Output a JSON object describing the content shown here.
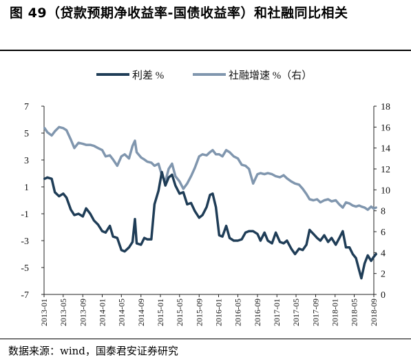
{
  "title": "图 49（贷款预期净收益率-国债收益率）和社融同比相关",
  "source": "数据来源：wind，国泰君安证券研究",
  "chart_data": {
    "type": "line",
    "legend_position": "top",
    "colors": {
      "spread": "#1f3d57",
      "tsf": "#8096ae"
    },
    "x_ticks": [
      "2013-01",
      "2013-05",
      "2013-09",
      "2014-01",
      "2014-05",
      "2014-09",
      "2015-01",
      "2015-05",
      "2015-09",
      "2016-01",
      "2016-05",
      "2016-09",
      "2017-01",
      "2017-05",
      "2017-09",
      "2018-01",
      "2018-05",
      "2018-09"
    ],
    "y_left": {
      "lim": [
        -7,
        7
      ],
      "ticks": [
        "7",
        "5",
        "3",
        "1",
        "-1",
        "-3",
        "-5",
        "-7"
      ]
    },
    "y_right": {
      "lim": [
        0,
        18
      ],
      "ticks": [
        "18",
        "16",
        "14",
        "12",
        "10",
        "8",
        "6",
        "4",
        "2",
        "0"
      ]
    },
    "series": [
      {
        "name": "利差 %",
        "axis": "left",
        "points": [
          [
            "2013-01-04",
            1.6
          ],
          [
            "2013-01-22",
            1.7
          ],
          [
            "2013-02-18",
            1.6
          ],
          [
            "2013-03-10",
            0.6
          ],
          [
            "2013-04-05",
            0.3
          ],
          [
            "2013-05-01",
            0.5
          ],
          [
            "2013-05-22",
            0.2
          ],
          [
            "2013-06-18",
            -0.7
          ],
          [
            "2013-07-10",
            -1.1
          ],
          [
            "2013-08-05",
            -1.0
          ],
          [
            "2013-09-01",
            -1.2
          ],
          [
            "2013-09-22",
            -0.6
          ],
          [
            "2013-10-18",
            -1.0
          ],
          [
            "2013-11-10",
            -1.5
          ],
          [
            "2013-12-05",
            -1.8
          ],
          [
            "2014-01-01",
            -2.3
          ],
          [
            "2014-01-22",
            -2.4
          ],
          [
            "2014-02-18",
            -1.9
          ],
          [
            "2014-03-10",
            -2.7
          ],
          [
            "2014-04-05",
            -2.8
          ],
          [
            "2014-05-01",
            -3.7
          ],
          [
            "2014-05-22",
            -3.8
          ],
          [
            "2014-06-18",
            -3.5
          ],
          [
            "2014-07-10",
            -3.1
          ],
          [
            "2014-07-25",
            -1.4
          ],
          [
            "2014-08-05",
            -3.2
          ],
          [
            "2014-09-01",
            -3.3
          ],
          [
            "2014-09-22",
            -2.8
          ],
          [
            "2014-10-10",
            -2.9
          ],
          [
            "2014-11-05",
            -2.9
          ],
          [
            "2014-11-25",
            -0.3
          ],
          [
            "2014-12-20",
            0.7
          ],
          [
            "2015-01-10",
            2.1
          ],
          [
            "2015-02-01",
            1.1
          ],
          [
            "2015-02-22",
            1.7
          ],
          [
            "2015-03-15",
            1.9
          ],
          [
            "2015-04-05",
            1.1
          ],
          [
            "2015-05-01",
            0.5
          ],
          [
            "2015-05-25",
            0.6
          ],
          [
            "2015-06-18",
            -0.3
          ],
          [
            "2015-07-12",
            -0.2
          ],
          [
            "2015-08-05",
            -0.8
          ],
          [
            "2015-09-01",
            -1.3
          ],
          [
            "2015-09-22",
            -1.1
          ],
          [
            "2015-10-18",
            -0.5
          ],
          [
            "2015-11-08",
            0.4
          ],
          [
            "2015-11-25",
            0.5
          ],
          [
            "2015-12-15",
            -0.5
          ],
          [
            "2016-01-05",
            -2.6
          ],
          [
            "2016-01-25",
            -2.7
          ],
          [
            "2016-02-18",
            -1.9
          ],
          [
            "2016-03-10",
            -2.8
          ],
          [
            "2016-04-05",
            -3.0
          ],
          [
            "2016-05-01",
            -3.0
          ],
          [
            "2016-05-25",
            -2.9
          ],
          [
            "2016-06-18",
            -2.4
          ],
          [
            "2016-07-10",
            -2.3
          ],
          [
            "2016-08-05",
            -2.3
          ],
          [
            "2016-09-01",
            -2.5
          ],
          [
            "2016-09-20",
            -3.0
          ],
          [
            "2016-10-15",
            -2.4
          ],
          [
            "2016-11-05",
            -3.0
          ],
          [
            "2016-12-01",
            -3.2
          ],
          [
            "2016-12-25",
            -2.4
          ],
          [
            "2017-01-20",
            -3.1
          ],
          [
            "2017-02-12",
            -3.2
          ],
          [
            "2017-03-05",
            -3.0
          ],
          [
            "2017-04-01",
            -3.6
          ],
          [
            "2017-04-25",
            -4.0
          ],
          [
            "2017-05-20",
            -3.6
          ],
          [
            "2017-06-12",
            -3.7
          ],
          [
            "2017-07-05",
            -3.3
          ],
          [
            "2017-07-25",
            -2.2
          ],
          [
            "2017-08-18",
            -2.5
          ],
          [
            "2017-09-10",
            -2.8
          ],
          [
            "2017-10-01",
            -3.0
          ],
          [
            "2017-10-25",
            -2.6
          ],
          [
            "2017-11-18",
            -3.1
          ],
          [
            "2017-12-10",
            -2.8
          ],
          [
            "2018-01-05",
            -3.3
          ],
          [
            "2018-01-28",
            -2.8
          ],
          [
            "2018-02-18",
            -2.3
          ],
          [
            "2018-03-10",
            -3.5
          ],
          [
            "2018-04-01",
            -3.5
          ],
          [
            "2018-04-22",
            -4.0
          ],
          [
            "2018-05-12",
            -4.3
          ],
          [
            "2018-06-01",
            -5.2
          ],
          [
            "2018-06-15",
            -5.8
          ],
          [
            "2018-07-05",
            -4.7
          ],
          [
            "2018-07-25",
            -4.1
          ],
          [
            "2018-08-15",
            -4.5
          ],
          [
            "2018-09-01",
            -4.2
          ],
          [
            "2018-09-15",
            -4.0
          ]
        ]
      },
      {
        "name": "社融增速 %（右）",
        "axis": "right",
        "points": [
          [
            "2013-01-04",
            15.9
          ],
          [
            "2013-01-22",
            15.5
          ],
          [
            "2013-02-18",
            15.2
          ],
          [
            "2013-03-10",
            15.6
          ],
          [
            "2013-04-05",
            16.0
          ],
          [
            "2013-05-01",
            15.9
          ],
          [
            "2013-05-22",
            15.7
          ],
          [
            "2013-06-18",
            14.8
          ],
          [
            "2013-07-10",
            14.0
          ],
          [
            "2013-08-05",
            14.5
          ],
          [
            "2013-09-01",
            14.4
          ],
          [
            "2013-09-22",
            14.3
          ],
          [
            "2013-10-18",
            14.3
          ],
          [
            "2013-11-10",
            14.2
          ],
          [
            "2013-12-05",
            14.0
          ],
          [
            "2014-01-01",
            13.8
          ],
          [
            "2014-01-22",
            13.2
          ],
          [
            "2014-02-18",
            13.3
          ],
          [
            "2014-03-10",
            12.9
          ],
          [
            "2014-04-05",
            12.3
          ],
          [
            "2014-05-01",
            13.2
          ],
          [
            "2014-05-22",
            13.4
          ],
          [
            "2014-06-18",
            13.0
          ],
          [
            "2014-07-10",
            14.2
          ],
          [
            "2014-07-25",
            14.7
          ],
          [
            "2014-08-05",
            13.6
          ],
          [
            "2014-09-01",
            13.1
          ],
          [
            "2014-09-22",
            12.9
          ],
          [
            "2014-10-10",
            12.7
          ],
          [
            "2014-11-05",
            12.6
          ],
          [
            "2014-11-25",
            12.3
          ],
          [
            "2014-12-20",
            12.5
          ],
          [
            "2015-01-10",
            11.4
          ],
          [
            "2015-02-01",
            10.8
          ],
          [
            "2015-02-22",
            12.0
          ],
          [
            "2015-03-15",
            12.5
          ],
          [
            "2015-04-05",
            11.3
          ],
          [
            "2015-05-01",
            10.8
          ],
          [
            "2015-05-25",
            10.1
          ],
          [
            "2015-06-18",
            10.6
          ],
          [
            "2015-07-12",
            11.3
          ],
          [
            "2015-08-05",
            12.1
          ],
          [
            "2015-09-01",
            13.2
          ],
          [
            "2015-09-22",
            13.4
          ],
          [
            "2015-10-18",
            13.3
          ],
          [
            "2015-11-08",
            13.6
          ],
          [
            "2015-11-25",
            13.8
          ],
          [
            "2015-12-15",
            13.4
          ],
          [
            "2016-01-05",
            13.4
          ],
          [
            "2016-01-25",
            13.2
          ],
          [
            "2016-02-18",
            13.8
          ],
          [
            "2016-03-10",
            13.6
          ],
          [
            "2016-04-05",
            13.2
          ],
          [
            "2016-05-01",
            13.0
          ],
          [
            "2016-05-25",
            12.4
          ],
          [
            "2016-06-18",
            12.3
          ],
          [
            "2016-07-10",
            12.0
          ],
          [
            "2016-08-05",
            10.6
          ],
          [
            "2016-09-01",
            11.5
          ],
          [
            "2016-09-20",
            11.6
          ],
          [
            "2016-10-15",
            11.5
          ],
          [
            "2016-11-05",
            11.6
          ],
          [
            "2016-12-01",
            11.5
          ],
          [
            "2016-12-25",
            11.3
          ],
          [
            "2017-01-20",
            11.2
          ],
          [
            "2017-02-12",
            11.4
          ],
          [
            "2017-03-05",
            11.1
          ],
          [
            "2017-04-01",
            10.8
          ],
          [
            "2017-04-25",
            10.6
          ],
          [
            "2017-05-20",
            10.5
          ],
          [
            "2017-06-12",
            10.1
          ],
          [
            "2017-07-05",
            9.6
          ],
          [
            "2017-07-25",
            9.1
          ],
          [
            "2017-08-18",
            9.0
          ],
          [
            "2017-09-10",
            9.1
          ],
          [
            "2017-10-01",
            8.8
          ],
          [
            "2017-10-25",
            9.0
          ],
          [
            "2017-11-18",
            9.1
          ],
          [
            "2017-12-10",
            8.9
          ],
          [
            "2018-01-05",
            9.0
          ],
          [
            "2018-01-28",
            8.6
          ],
          [
            "2018-02-18",
            8.3
          ],
          [
            "2018-03-10",
            8.8
          ],
          [
            "2018-04-01",
            8.7
          ],
          [
            "2018-04-22",
            8.5
          ],
          [
            "2018-05-12",
            8.4
          ],
          [
            "2018-06-01",
            8.5
          ],
          [
            "2018-06-15",
            8.4
          ],
          [
            "2018-07-05",
            8.3
          ],
          [
            "2018-07-25",
            8.1
          ],
          [
            "2018-08-15",
            8.4
          ],
          [
            "2018-09-01",
            8.2
          ],
          [
            "2018-09-15",
            8.3
          ]
        ]
      }
    ]
  }
}
